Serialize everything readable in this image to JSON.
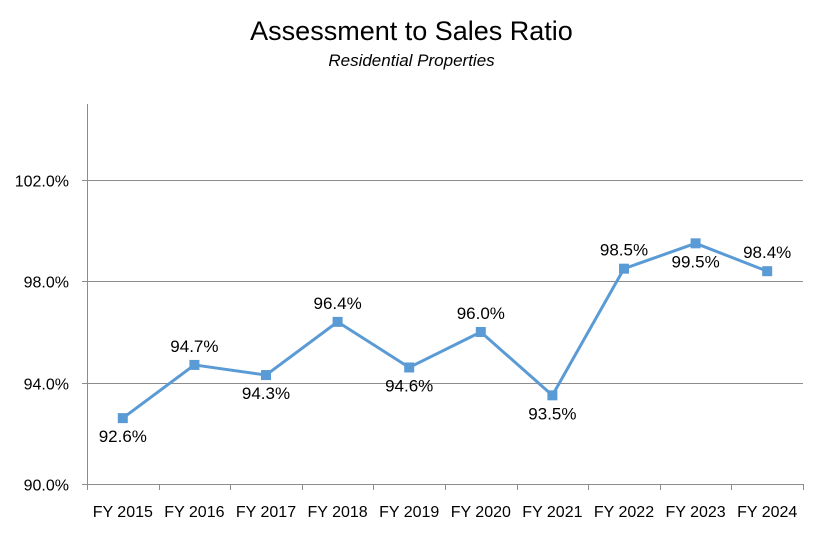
{
  "chart_data": {
    "type": "line",
    "title": "Assessment to Sales Ratio",
    "subtitle": "Residential Properties",
    "xlabel": "",
    "ylabel": "",
    "categories": [
      "FY 2015",
      "FY 2016",
      "FY 2017",
      "FY 2018",
      "FY 2019",
      "FY 2020",
      "FY 2021",
      "FY 2022",
      "FY 2023",
      "FY 2024"
    ],
    "series": [
      {
        "name": "Assessment to Sales Ratio",
        "values": [
          92.6,
          94.7,
          94.3,
          96.4,
          94.6,
          96.0,
          93.5,
          98.5,
          99.5,
          98.4
        ],
        "data_labels": [
          "92.6%",
          "94.7%",
          "94.3%",
          "96.4%",
          "94.6%",
          "96.0%",
          "93.5%",
          "98.5%",
          "99.5%",
          "98.4%"
        ],
        "label_positions": [
          "below",
          "above",
          "below",
          "above",
          "below",
          "above",
          "below",
          "above",
          "below",
          "above"
        ]
      }
    ],
    "ylim": [
      90,
      105
    ],
    "yticks": [
      90,
      94,
      98,
      102
    ],
    "ytick_labels": [
      "90.0%",
      "94.0%",
      "98.0%",
      "102.0%"
    ],
    "grid": true,
    "legend": "none",
    "colors": {
      "line": "#5b9bd5",
      "marker": "#5b9bd5",
      "grid": "#8c8c8c",
      "axis": "#8c8c8c"
    }
  }
}
